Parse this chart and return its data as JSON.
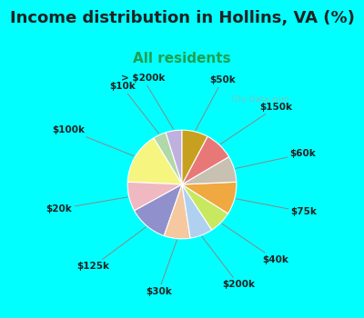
{
  "title": "Income distribution in Hollins, VA (%)",
  "subtitle": "All residents",
  "title_fontsize": 13,
  "subtitle_fontsize": 11,
  "background_top": "#00FFFF",
  "background_chart": "#e8f5ee",
  "labels": [
    "> $200k",
    "$10k",
    "$100k",
    "$20k",
    "$125k",
    "$30k",
    "$200k",
    "$40k",
    "$75k",
    "$60k",
    "$150k",
    "$50k"
  ],
  "sizes": [
    5,
    4,
    16,
    9,
    12,
    8,
    7,
    7,
    10,
    8,
    9,
    8
  ],
  "colors": [
    "#c0b0e0",
    "#b0d8a8",
    "#f5f580",
    "#f0b8c0",
    "#9090cc",
    "#f5c8a0",
    "#b0d0f0",
    "#c8e860",
    "#f0a840",
    "#c8c0b0",
    "#e87878",
    "#c8a020"
  ],
  "watermark": "City-Data.com",
  "label_fontsize": 7.5,
  "title_color": "#222222",
  "subtitle_color": "#20a050"
}
